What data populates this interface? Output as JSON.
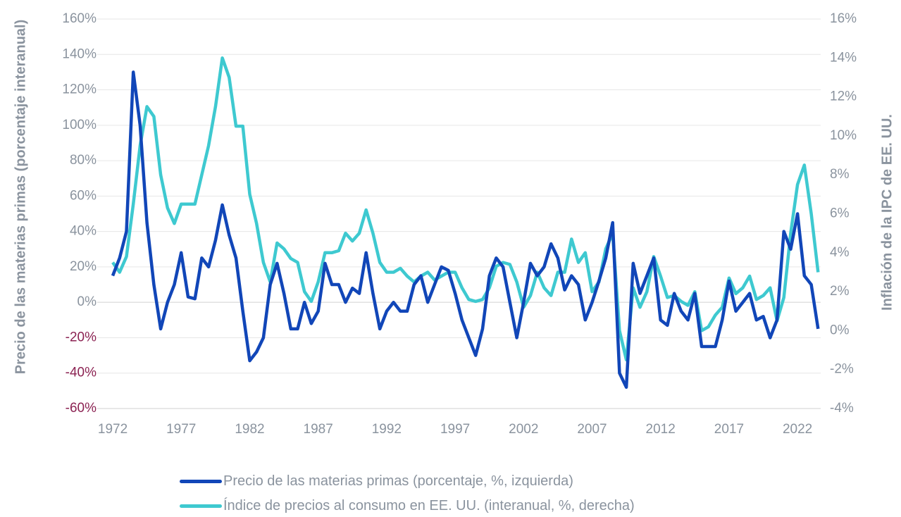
{
  "chart_data": {
    "type": "line",
    "y_label": "Precio de las materias primas (porcentaje interanual)",
    "y2_label": "Inflación de la IPC de EE. UU.",
    "x": [
      1972,
      1972.5,
      1973,
      1973.5,
      1974,
      1974.5,
      1975,
      1975.5,
      1976,
      1976.5,
      1977,
      1977.5,
      1978,
      1978.5,
      1979,
      1979.5,
      1980,
      1980.5,
      1981,
      1981.5,
      1982,
      1982.5,
      1983,
      1983.5,
      1984,
      1984.5,
      1985,
      1985.5,
      1986,
      1986.5,
      1987,
      1987.5,
      1988,
      1988.5,
      1989,
      1989.5,
      1990,
      1990.5,
      1991,
      1991.5,
      1992,
      1992.5,
      1993,
      1993.5,
      1994,
      1994.5,
      1995,
      1995.5,
      1996,
      1996.5,
      1997,
      1997.5,
      1998,
      1998.5,
      1999,
      1999.5,
      2000,
      2000.5,
      2001,
      2001.5,
      2002,
      2002.5,
      2003,
      2003.5,
      2004,
      2004.5,
      2005,
      2005.5,
      2006,
      2006.5,
      2007,
      2007.5,
      2008,
      2008.5,
      2009,
      2009.5,
      2010,
      2010.5,
      2011,
      2011.5,
      2012,
      2012.5,
      2013,
      2013.5,
      2014,
      2014.5,
      2015,
      2015.5,
      2016,
      2016.5,
      2017,
      2017.5,
      2018,
      2018.5,
      2019,
      2019.5,
      2020,
      2020.5,
      2021,
      2021.5,
      2022,
      2022.5,
      2023,
      2023.5
    ],
    "series": [
      {
        "name": "Precio de las materias primas (porcentaje, %, izquierda)",
        "color": "#1146b8",
        "axis": "y",
        "values": [
          15,
          25,
          40,
          130,
          100,
          45,
          10,
          -15,
          0,
          10,
          28,
          3,
          2,
          25,
          20,
          35,
          55,
          38,
          25,
          -5,
          -33,
          -28,
          -20,
          10,
          22,
          5,
          -15,
          -15,
          0,
          -12,
          -5,
          22,
          10,
          10,
          0,
          8,
          5,
          28,
          5,
          -15,
          -5,
          0,
          -5,
          -5,
          10,
          15,
          0,
          10,
          20,
          18,
          5,
          -10,
          -20,
          -30,
          -15,
          15,
          25,
          20,
          0,
          -20,
          0,
          22,
          15,
          20,
          33,
          25,
          7,
          15,
          10,
          -10,
          0,
          12,
          25,
          45,
          -40,
          -48,
          22,
          5,
          15,
          25,
          -10,
          -13,
          5,
          -5,
          -10,
          5,
          -25,
          -25,
          -25,
          -10,
          12,
          -5,
          0,
          5,
          -10,
          -8,
          -20,
          -10,
          40,
          30,
          50,
          15,
          10,
          -15
        ]
      },
      {
        "name": "Índice de precios al consumo en EE. UU. (interanual, %, derecha)",
        "color": "#3ec9d0",
        "axis": "y2",
        "values": [
          3.5,
          3.0,
          3.8,
          6.5,
          9.5,
          11.5,
          11,
          8,
          6.3,
          5.5,
          6.5,
          6.5,
          6.5,
          8,
          9.5,
          11.5,
          14,
          13,
          10.5,
          10.5,
          7,
          5.5,
          3.5,
          2.5,
          4.5,
          4.2,
          3.7,
          3.5,
          2.0,
          1.5,
          2.5,
          4.0,
          4.0,
          4.1,
          5.0,
          4.6,
          5.0,
          6.2,
          5.0,
          3.5,
          3.0,
          3.0,
          3.2,
          2.8,
          2.5,
          2.8,
          3.0,
          2.6,
          2.8,
          3.0,
          3.0,
          2.2,
          1.6,
          1.5,
          1.6,
          2.2,
          3.3,
          3.5,
          3.4,
          2.5,
          1.2,
          1.8,
          3.0,
          2.2,
          1.8,
          3.0,
          3.0,
          4.7,
          3.5,
          4.0,
          2.0,
          2.5,
          4.2,
          5.0,
          0,
          -1.5,
          2.2,
          1.2,
          2.0,
          3.8,
          2.8,
          1.7,
          1.8,
          1.5,
          1.3,
          2.0,
          0,
          0.2,
          0.8,
          1.2,
          2.7,
          1.9,
          2.2,
          2.8,
          1.6,
          1.8,
          2.2,
          0.5,
          1.7,
          5.0,
          7.5,
          8.5,
          6.0,
          3.0
        ]
      }
    ],
    "xlim": [
      1971,
      2024
    ],
    "xticks": [
      1972,
      1977,
      1982,
      1987,
      1992,
      1997,
      2002,
      2007,
      2012,
      2017,
      2022
    ],
    "ylim": [
      -60,
      160
    ],
    "yticks": [
      {
        "value": -60,
        "label": "-60%"
      },
      {
        "value": -40,
        "label": "-40%"
      },
      {
        "value": -20,
        "label": "-20%"
      },
      {
        "value": 0,
        "label": "0%"
      },
      {
        "value": 20,
        "label": "20%"
      },
      {
        "value": 40,
        "label": "40%"
      },
      {
        "value": 60,
        "label": "60%"
      },
      {
        "value": 80,
        "label": "80%"
      },
      {
        "value": 100,
        "label": "100%"
      },
      {
        "value": 120,
        "label": "120%"
      },
      {
        "value": 140,
        "label": "140%"
      },
      {
        "value": 160,
        "label": "160%"
      }
    ],
    "y2lim": [
      -4,
      16
    ],
    "y2ticks": [
      {
        "value": -4,
        "label": "-4%"
      },
      {
        "value": -2,
        "label": "-2%"
      },
      {
        "value": 0,
        "label": "0%"
      },
      {
        "value": 2,
        "label": "2%"
      },
      {
        "value": 4,
        "label": "4%"
      },
      {
        "value": 6,
        "label": "6%"
      },
      {
        "value": 8,
        "label": "8%"
      },
      {
        "value": 10,
        "label": "10%"
      },
      {
        "value": 12,
        "label": "12%"
      },
      {
        "value": 14,
        "label": "14%"
      },
      {
        "value": 16,
        "label": "16%"
      }
    ],
    "grid": true,
    "negative_ytick_color": "#8b2252"
  }
}
